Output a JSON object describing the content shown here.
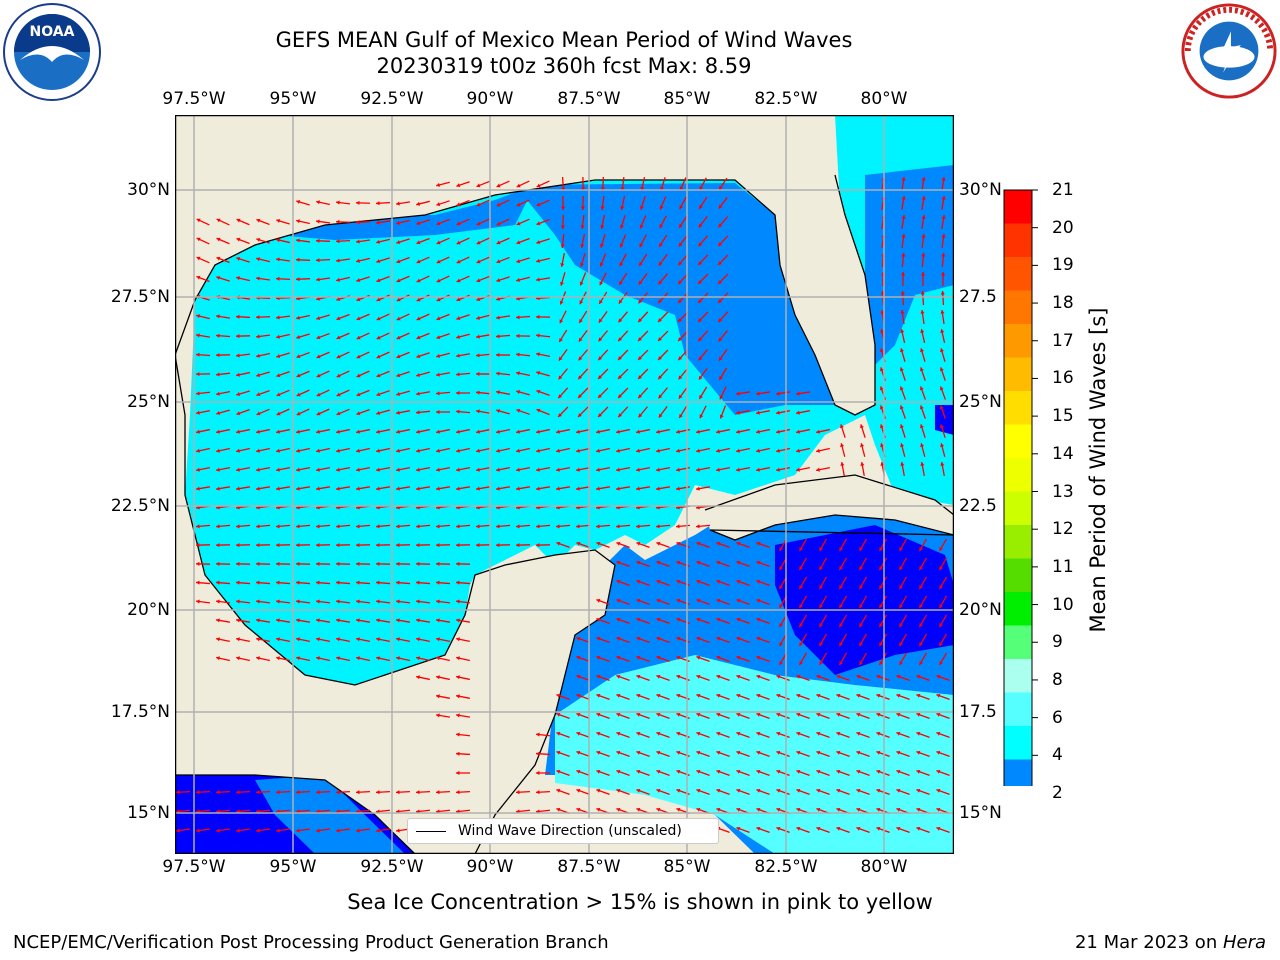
{
  "title_line1": "GEFS MEAN Gulf of Mexico Mean Period of Wind Waves",
  "title_line2": "20230319 t00z 360h fcst   Max: 8.59",
  "lon_ticks": [
    "97.5°W",
    "95°W",
    "92.5°W",
    "90°W",
    "87.5°W",
    "85°W",
    "82.5°W",
    "80°W"
  ],
  "lat_ticks_left": [
    "30°N",
    "27.5°N",
    "25°N",
    "22.5°N",
    "20°N",
    "17.5°N",
    "15°N"
  ],
  "lat_ticks_right": [
    "30°N",
    "27.5",
    "25°N",
    "22.5",
    "20°N",
    "17.5",
    "15°N"
  ],
  "legend_label": "Wind Wave Direction (unscaled)",
  "colorbar": {
    "label": "Mean Period of Wind Waves [s]",
    "ticks": [
      "21",
      "20",
      "19",
      "18",
      "17",
      "16",
      "15",
      "14",
      "13",
      "12",
      "11",
      "10",
      "9",
      "8",
      "6",
      "4",
      "2"
    ],
    "colors": [
      "#ff0000",
      "#ff3300",
      "#ff5500",
      "#ff7700",
      "#ff9900",
      "#ffbb00",
      "#ffdd00",
      "#ffff00",
      "#eeff00",
      "#ccff00",
      "#99ee00",
      "#55dd00",
      "#00ee00",
      "#55ff77",
      "#aaffee",
      "#55ffff",
      "#00ffff",
      "#0088ff",
      "#0000ff"
    ]
  },
  "sea_ice_note": "Sea Ice Concentration > 15% is shown in pink to yellow",
  "footer_left": "NCEP/EMC/Verification Post Processing Product Generation Branch",
  "footer_right_date": "21 Mar 2023 on ",
  "footer_right_host": "Hera",
  "logos": {
    "left": "noaa-logo",
    "right": "national-weather-service-logo"
  },
  "colors": {
    "land": "#efecdc",
    "arrow": "#ff0000",
    "grid": "#b0b0b0"
  }
}
